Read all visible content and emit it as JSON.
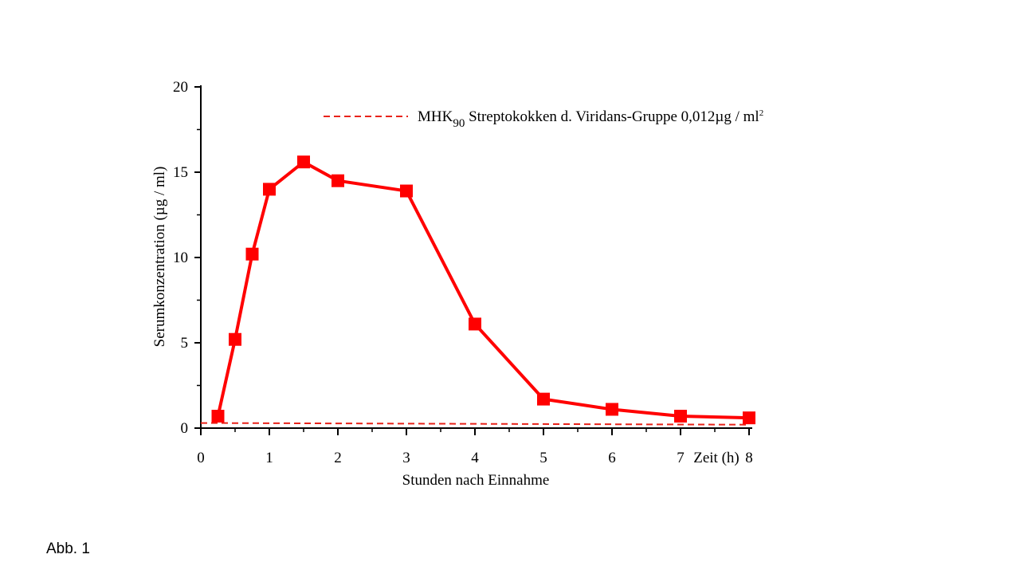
{
  "caption": "Abb. 1",
  "chart_data": {
    "type": "line",
    "xlabel": "Stunden nach Einnahme",
    "x_unit_label": "Zeit (h)",
    "ylabel": "Serumkonzentration (µg / ml)",
    "xlim": [
      0,
      8
    ],
    "ylim": [
      0,
      20
    ],
    "xticks": [
      0,
      1,
      2,
      3,
      4,
      5,
      6,
      7,
      8
    ],
    "yticks": [
      0,
      5,
      10,
      15,
      20
    ],
    "series": [
      {
        "name": "Serumkonzentration",
        "color": "#ff0000",
        "x": [
          0.25,
          0.5,
          0.75,
          1,
          1.5,
          2,
          3,
          4,
          5,
          6,
          7,
          8
        ],
        "y": [
          0.7,
          5.2,
          10.2,
          14.0,
          15.6,
          14.5,
          13.9,
          6.1,
          1.7,
          1.1,
          0.7,
          0.6
        ]
      }
    ],
    "reference_line": {
      "label": "MHK90 Streptokokken d. Viridans-Gruppe 0,012µg / ml²",
      "label_main": "MHK",
      "label_sub": "90",
      "label_rest": " Streptokokken d. Viridans-Gruppe 0,012µg / ml",
      "label_sup": "2",
      "y_start": 0.3,
      "y_end": 0.2,
      "color": "#e8231a",
      "style": "dashed"
    },
    "legend_position": "top-right"
  }
}
